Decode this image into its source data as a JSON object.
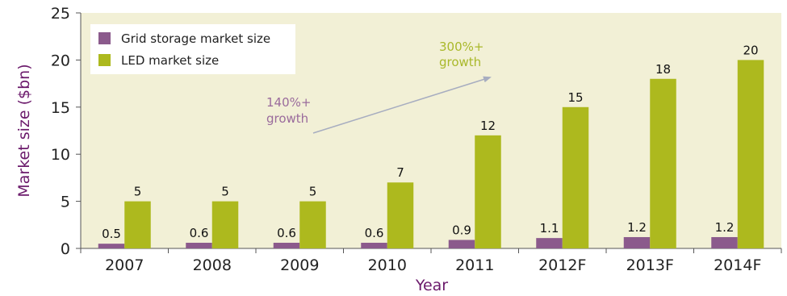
{
  "chart_data": {
    "type": "bar",
    "categories": [
      "2007",
      "2008",
      "2009",
      "2010",
      "2011",
      "2012F",
      "2013F",
      "2014F"
    ],
    "series": [
      {
        "name": "Grid storage market size",
        "values": [
          0.5,
          0.6,
          0.6,
          0.6,
          0.9,
          1.1,
          1.2,
          1.2
        ],
        "labels": [
          "0.5",
          "0.6",
          "0.6",
          "0.6",
          "0.9",
          "1.1",
          "1.2",
          "1.2"
        ],
        "color": "#8b5a8c"
      },
      {
        "name": "LED market size",
        "values": [
          5,
          5,
          5,
          7,
          12,
          15,
          18,
          20
        ],
        "labels": [
          "5",
          "5",
          "5",
          "7",
          "12",
          "15",
          "18",
          "20"
        ],
        "color": "#adb91e"
      }
    ],
    "xlabel": "Year",
    "ylabel": "Market size ($bn)",
    "ylim": [
      0,
      25
    ],
    "yticks": [
      0,
      5,
      10,
      15,
      20,
      25
    ],
    "grid": false,
    "legend": "top-left",
    "annotations": [
      {
        "text_lines": [
          "140%+",
          "growth"
        ],
        "color": "#9a6b9c"
      },
      {
        "text_lines": [
          "300%+",
          "growth"
        ],
        "color": "#a9b82a"
      }
    ],
    "colors": {
      "plot_background": "#f2f0d6",
      "axis_title": "#6b1a6b",
      "arrow": "#a7adc0"
    }
  }
}
